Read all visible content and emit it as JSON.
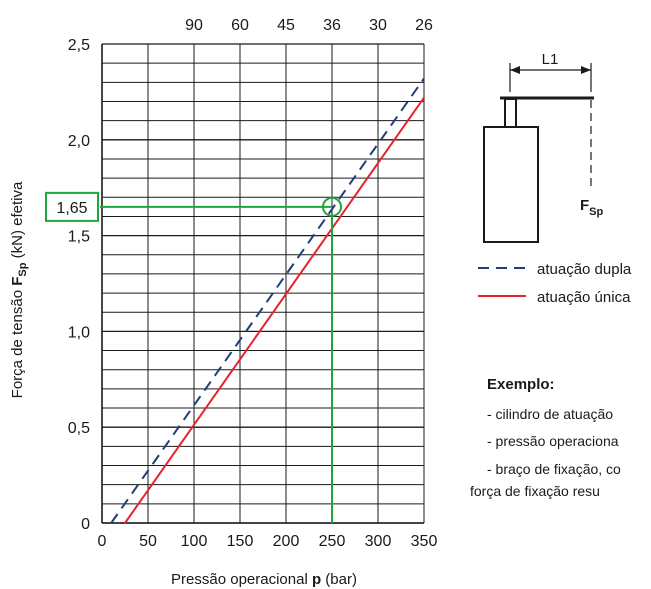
{
  "chart_data": {
    "type": "line",
    "title": "",
    "xlabel_prefix": "Pressão operacional ",
    "xlabel_symbol": "p",
    "xlabel_suffix": " (bar)",
    "ylabel_prefix": "Força de tensão ",
    "ylabel_symbol": "F",
    "ylabel_subscript": "Sp",
    "ylabel_suffix": " (kN) efetiva",
    "xlim": [
      0,
      350
    ],
    "ylim": [
      0,
      2.5
    ],
    "x_ticks": [
      0,
      50,
      100,
      150,
      200,
      250,
      300,
      350
    ],
    "x_tick_labels": [
      "0",
      "50",
      "100",
      "150",
      "200",
      "250",
      "300",
      "350"
    ],
    "y_ticks": [
      0,
      0.5,
      1.0,
      1.5,
      2.0,
      2.5
    ],
    "y_tick_labels": [
      "0",
      "0,5",
      "1,0",
      "1,5",
      "2,0",
      "2,5"
    ],
    "y_minor_step": 0.1,
    "top_axis": {
      "positions": [
        100,
        150,
        200,
        250,
        300,
        350
      ],
      "labels": [
        "90",
        "60",
        "45",
        "36",
        "30",
        "26"
      ]
    },
    "grid": true,
    "series": [
      {
        "name": "atuação dupla",
        "style": "dashed",
        "color": "#1f3e7a",
        "x": [
          10,
          350
        ],
        "y": [
          0,
          2.32
        ]
      },
      {
        "name": "atuação única",
        "style": "solid",
        "color": "#e8222a",
        "x": [
          25,
          350
        ],
        "y": [
          0,
          2.22
        ]
      }
    ],
    "annotation": {
      "label": "1,65",
      "x": 250,
      "y": 1.65,
      "color": "#1fa53c"
    },
    "legend_position": "right"
  },
  "diagram": {
    "dimension_label": "L1",
    "force_symbol": "F",
    "force_subscript": "Sp"
  },
  "example": {
    "title": "Exemplo:",
    "lines": [
      "- cilindro de atuação",
      "- pressão operaciona",
      "- braço de fixação, co",
      "força de fixação resu"
    ]
  }
}
